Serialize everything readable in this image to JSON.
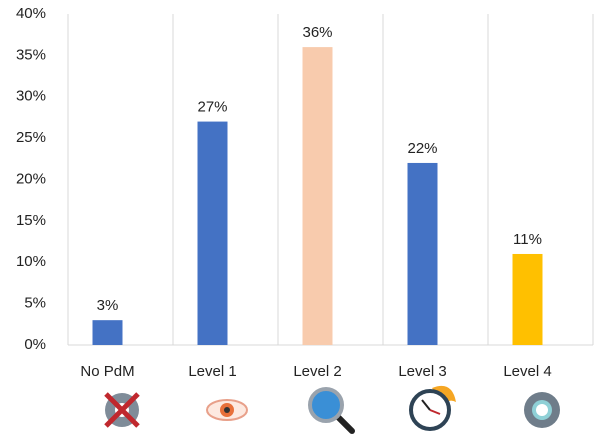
{
  "chart_data": {
    "type": "bar",
    "categories": [
      "No PdM",
      "Level 1",
      "Level 2",
      "Level 3",
      "Level 4"
    ],
    "values": [
      3,
      27,
      36,
      22,
      11
    ],
    "value_labels": [
      "3%",
      "27%",
      "36%",
      "22%",
      "11%"
    ],
    "colors": [
      "#4472c4",
      "#4472c4",
      "#f8cbad",
      "#4472c4",
      "#ffc000"
    ],
    "ylim": [
      0,
      40
    ],
    "yticks": [
      {
        "value": 0,
        "label": "0%"
      },
      {
        "value": 5,
        "label": "5%"
      },
      {
        "value": 10,
        "label": "10%"
      },
      {
        "value": 15,
        "label": "15%"
      },
      {
        "value": 20,
        "label": "20%"
      },
      {
        "value": 25,
        "label": "25%"
      },
      {
        "value": 30,
        "label": "30%"
      },
      {
        "value": 35,
        "label": "35%"
      },
      {
        "value": 40,
        "label": "40%"
      }
    ],
    "grid": "vertical"
  }
}
